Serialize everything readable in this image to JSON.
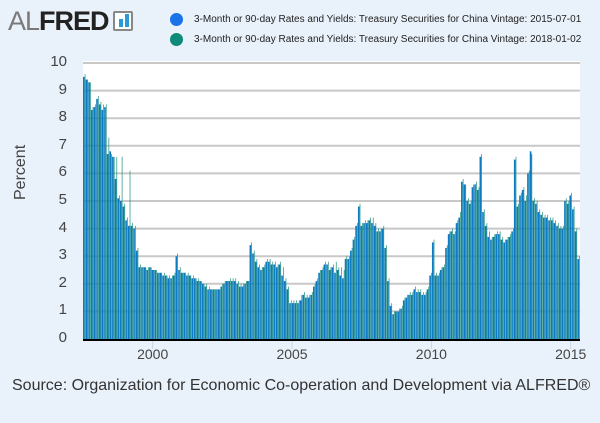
{
  "logo": {
    "al": "AL",
    "fred": "FRED"
  },
  "legend": [
    {
      "label": "3-Month or 90-day Rates and Yields: Treasury Securities for China Vintage: 2015-07-01",
      "color": "#0e7bc0"
    },
    {
      "label": "3-Month or 90-day Rates and Yields: Treasury Securities for China Vintage: 2018-01-02",
      "color": "#0f8a78"
    }
  ],
  "source": "Source: Organization for Economic Co-operation and Development via ALFRED®",
  "chart_data": {
    "type": "bar",
    "title": "",
    "xlabel": "",
    "ylabel": "Percent",
    "ylim": [
      0,
      10
    ],
    "yticks": [
      "0",
      "1",
      "2",
      "3",
      "4",
      "5",
      "6",
      "7",
      "8",
      "9",
      "10"
    ],
    "xticks": [
      "2000",
      "2005",
      "2010",
      "2015"
    ],
    "xtick_years": [
      2000,
      2005,
      2010,
      2015
    ],
    "x_start": "1997-07",
    "x_end": "2015-04",
    "frequency": "monthly",
    "grid": true,
    "legend_position": "top",
    "series": [
      {
        "name": "Vintage: 2015-07-01",
        "color": "#0e7bc0",
        "values": [
          9.5,
          9.4,
          9.3,
          8.3,
          8.4,
          8.7,
          8.5,
          8.3,
          8.4,
          6.7,
          6.8,
          6.6,
          5.8,
          5.1,
          5.0,
          4.8,
          4.3,
          4.1,
          4.1,
          4.0,
          3.2,
          2.6,
          2.6,
          2.6,
          2.5,
          2.6,
          2.5,
          2.5,
          2.4,
          2.4,
          2.3,
          2.3,
          2.2,
          2.2,
          2.3,
          3.0,
          2.5,
          2.4,
          2.4,
          2.3,
          2.3,
          2.2,
          2.2,
          2.1,
          2.1,
          2.0,
          1.9,
          1.8,
          1.8,
          1.8,
          1.8,
          1.8,
          1.9,
          2.0,
          2.1,
          2.1,
          2.1,
          2.1,
          2.0,
          1.9,
          1.9,
          2.0,
          2.1,
          3.4,
          3.1,
          2.8,
          2.6,
          2.5,
          2.6,
          2.8,
          2.8,
          2.7,
          2.7,
          2.6,
          2.7,
          2.3,
          2.1,
          1.8,
          1.3,
          1.3,
          1.3,
          1.3,
          1.4,
          1.6,
          1.5,
          1.5,
          1.6,
          1.9,
          2.1,
          2.4,
          2.5,
          2.7,
          2.7,
          2.5,
          2.6,
          2.4,
          2.5,
          2.3,
          2.2,
          2.9,
          2.9,
          3.2,
          3.6,
          4.1,
          4.8,
          4.1,
          4.2,
          4.2,
          4.3,
          4.2,
          4.1,
          3.9,
          3.9,
          4.0,
          3.3,
          2.1,
          1.2,
          0.9,
          1.0,
          1.0,
          1.1,
          1.4,
          1.5,
          1.6,
          1.6,
          1.8,
          1.7,
          1.7,
          1.6,
          1.6,
          1.8,
          2.3,
          3.5,
          2.3,
          2.3,
          2.5,
          2.6,
          3.3,
          3.8,
          3.9,
          3.8,
          4.2,
          4.4,
          5.7,
          5.6,
          5.0,
          4.9,
          5.5,
          5.6,
          5.4,
          6.6,
          4.6,
          4.1,
          3.7,
          3.6,
          3.7,
          3.8,
          3.8,
          3.6,
          3.5,
          3.6,
          3.7,
          3.9,
          6.5,
          4.8,
          5.2,
          5.4,
          5.0,
          6.0,
          6.8,
          5.0,
          4.9,
          4.6,
          4.5,
          4.4,
          4.4,
          4.3,
          4.3,
          4.2,
          4.1,
          4.0,
          4.0,
          5.0,
          4.9,
          5.2,
          4.7,
          3.9,
          2.9
        ]
      },
      {
        "name": "Vintage: 2018-01-02",
        "color": "#0f8a78",
        "values": [
          9.6,
          9.4,
          9.3,
          8.4,
          8.5,
          8.8,
          8.6,
          8.5,
          8.5,
          7.3,
          6.7,
          6.6,
          6.6,
          5.2,
          6.6,
          4.9,
          4.4,
          6.1,
          4.2,
          4.1,
          3.3,
          2.7,
          2.6,
          2.6,
          2.6,
          2.6,
          2.5,
          2.5,
          2.4,
          2.4,
          2.4,
          2.3,
          2.3,
          2.3,
          2.4,
          3.1,
          2.6,
          2.4,
          2.4,
          2.4,
          2.3,
          2.3,
          2.2,
          2.2,
          2.1,
          2.0,
          2.0,
          1.9,
          1.8,
          1.8,
          1.8,
          1.8,
          2.0,
          2.1,
          2.1,
          2.2,
          2.2,
          2.2,
          2.1,
          2.0,
          2.0,
          2.1,
          2.1,
          3.5,
          3.2,
          2.9,
          2.7,
          2.6,
          2.7,
          2.9,
          2.9,
          2.8,
          2.8,
          2.7,
          2.8,
          2.6,
          2.2,
          1.9,
          1.4,
          1.4,
          1.4,
          1.4,
          1.6,
          1.7,
          1.6,
          1.6,
          1.7,
          2.0,
          2.2,
          2.5,
          2.6,
          2.8,
          2.8,
          2.6,
          2.7,
          2.8,
          2.6,
          2.6,
          2.5,
          3.0,
          3.0,
          3.3,
          3.7,
          4.2,
          4.9,
          4.2,
          4.3,
          4.3,
          4.4,
          4.4,
          4.2,
          4.0,
          4.0,
          4.1,
          3.4,
          2.2,
          1.3,
          1.0,
          1.0,
          1.1,
          1.2,
          1.5,
          1.6,
          1.7,
          1.7,
          1.9,
          1.8,
          1.8,
          1.7,
          1.7,
          1.9,
          2.4,
          3.6,
          2.4,
          2.4,
          2.6,
          2.7,
          3.4,
          3.9,
          4.0,
          3.9,
          4.3,
          4.6,
          5.8,
          5.6,
          5.1,
          5.0,
          5.6,
          5.7,
          5.5,
          6.7,
          4.7,
          4.2,
          3.9,
          3.7,
          3.8,
          3.9,
          3.9,
          3.7,
          3.6,
          3.7,
          3.8,
          4.0,
          6.6,
          4.9,
          5.3,
          5.5,
          5.2,
          6.1,
          6.7,
          5.1,
          5.0,
          4.7,
          4.6,
          4.5,
          4.5,
          4.4,
          4.4,
          4.3,
          4.2,
          4.1,
          4.1,
          5.1,
          5.0,
          5.3,
          4.8,
          4.0,
          3.0
        ]
      }
    ]
  }
}
